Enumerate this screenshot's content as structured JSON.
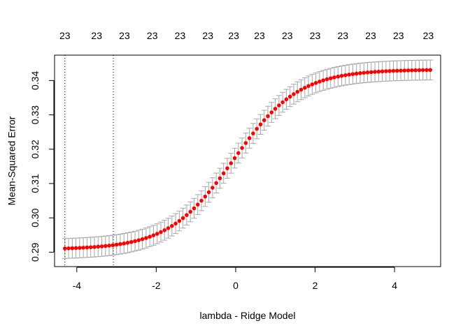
{
  "chart_data": {
    "type": "scatter",
    "title": "",
    "xlabel": "lambda - Ridge Model",
    "ylabel": "Mean-Squared Error",
    "xlim": [
      -4.56,
      5.16
    ],
    "ylim": [
      0.2858,
      0.3474
    ],
    "x_ticks": [
      -4,
      -2,
      0,
      2,
      4
    ],
    "x_tick_labels": [
      "-4",
      "-2",
      "0",
      "2",
      "4"
    ],
    "y_ticks": [
      0.29,
      0.3,
      0.31,
      0.32,
      0.33,
      0.34
    ],
    "y_tick_labels": [
      "0.29",
      "0.30",
      "0.31",
      "0.32",
      "0.33",
      "0.34"
    ],
    "top_ticks": [
      -4.3,
      -3.5,
      -2.8,
      -2.1,
      -1.4,
      -0.7,
      -0.05,
      0.6,
      1.3,
      2.0,
      2.7,
      3.4,
      4.1,
      4.85
    ],
    "top_tick_labels": [
      "23",
      "23",
      "23",
      "23",
      "23",
      "23",
      "23",
      "23",
      "23",
      "23",
      "23",
      "23",
      "23",
      "23"
    ],
    "vlines": [
      -4.3,
      -3.08
    ],
    "curve": {
      "x_start": -4.3,
      "x_end": 4.9,
      "n_points": 100,
      "min": 0.2908,
      "max": 0.3432,
      "center": -0.05,
      "scale": 0.82
    },
    "error_halfwidth": 0.0029,
    "grid": false,
    "point_color": "#ff0000",
    "errorbar_color": "#a6a6a6",
    "vline_color": "#000000"
  }
}
